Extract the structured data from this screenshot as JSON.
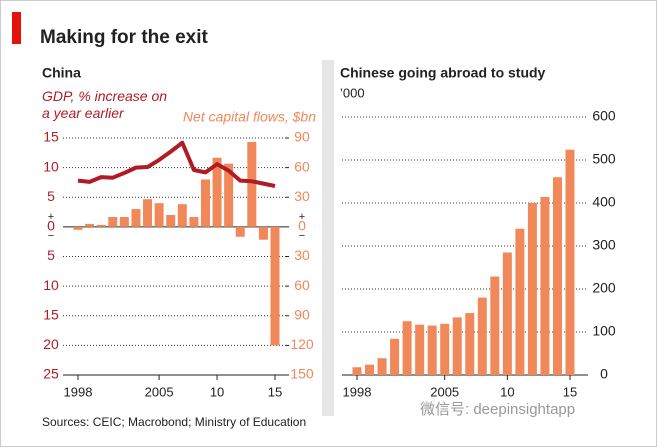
{
  "title": "Making for the exit",
  "source": "Sources: CEIC; Macrobond; Ministry of Education",
  "watermark": "微信号: deepinsightapp",
  "chart_data": [
    {
      "type": "combo",
      "title": "China",
      "x": [
        1998,
        1999,
        2000,
        2001,
        2002,
        2003,
        2004,
        2005,
        2006,
        2007,
        2008,
        2009,
        2010,
        2011,
        2012,
        2013,
        2014,
        2015
      ],
      "xticks": [
        1998,
        2005,
        {
          "value": 2010,
          "label": "10"
        },
        {
          "value": 2015,
          "label": "15"
        }
      ],
      "ylim": [
        -25,
        15
      ],
      "yticks": [
        15,
        10,
        5,
        0,
        {
          "value": -5,
          "label": "5"
        },
        {
          "value": -10,
          "label": "10"
        },
        {
          "value": -15,
          "label": "15"
        },
        {
          "value": -20,
          "label": "20"
        },
        {
          "value": -25,
          "label": "25"
        }
      ],
      "y2lim": [
        -150,
        90
      ],
      "y2ticks": [
        90,
        60,
        30,
        0,
        {
          "value": -30,
          "label": "30"
        },
        {
          "value": -60,
          "label": "60"
        },
        {
          "value": -90,
          "label": "90"
        },
        {
          "value": -120,
          "label": "120"
        },
        {
          "value": -150,
          "label": "150"
        }
      ],
      "sign_labels": {
        "plus": "+",
        "minus": "−"
      },
      "grid": true,
      "series": [
        {
          "name": "GDP, % increase on a year earlier",
          "kind": "line",
          "color": "#b01c24",
          "values": [
            7.8,
            7.6,
            8.4,
            8.3,
            9.1,
            10.0,
            10.1,
            11.3,
            12.7,
            14.2,
            9.6,
            9.2,
            10.6,
            9.5,
            7.8,
            7.7,
            7.3,
            6.9
          ]
        },
        {
          "name": "Net capital flows, $bn",
          "kind": "bar",
          "axis": "y2",
          "color": "#f0885a",
          "values": [
            -3,
            3,
            2,
            10,
            10,
            18,
            28,
            24,
            12,
            23,
            10,
            48,
            70,
            64,
            -10,
            86,
            -13,
            -120
          ]
        }
      ]
    },
    {
      "type": "bar",
      "title": "Chinese going abroad to study",
      "subtitle": "’000",
      "x": [
        1998,
        1999,
        2000,
        2001,
        2002,
        2003,
        2004,
        2005,
        2006,
        2007,
        2008,
        2009,
        2010,
        2011,
        2012,
        2013,
        2014,
        2015
      ],
      "xticks": [
        1998,
        2005,
        {
          "value": 2010,
          "label": "10"
        },
        {
          "value": 2015,
          "label": "15"
        }
      ],
      "ylim": [
        0,
        600
      ],
      "yticks": [
        0,
        100,
        200,
        300,
        400,
        500,
        600
      ],
      "grid": true,
      "color": "#f0885a",
      "values": [
        18,
        24,
        39,
        84,
        125,
        117,
        115,
        119,
        134,
        144,
        180,
        229,
        285,
        340,
        400,
        414,
        460,
        524
      ]
    }
  ]
}
